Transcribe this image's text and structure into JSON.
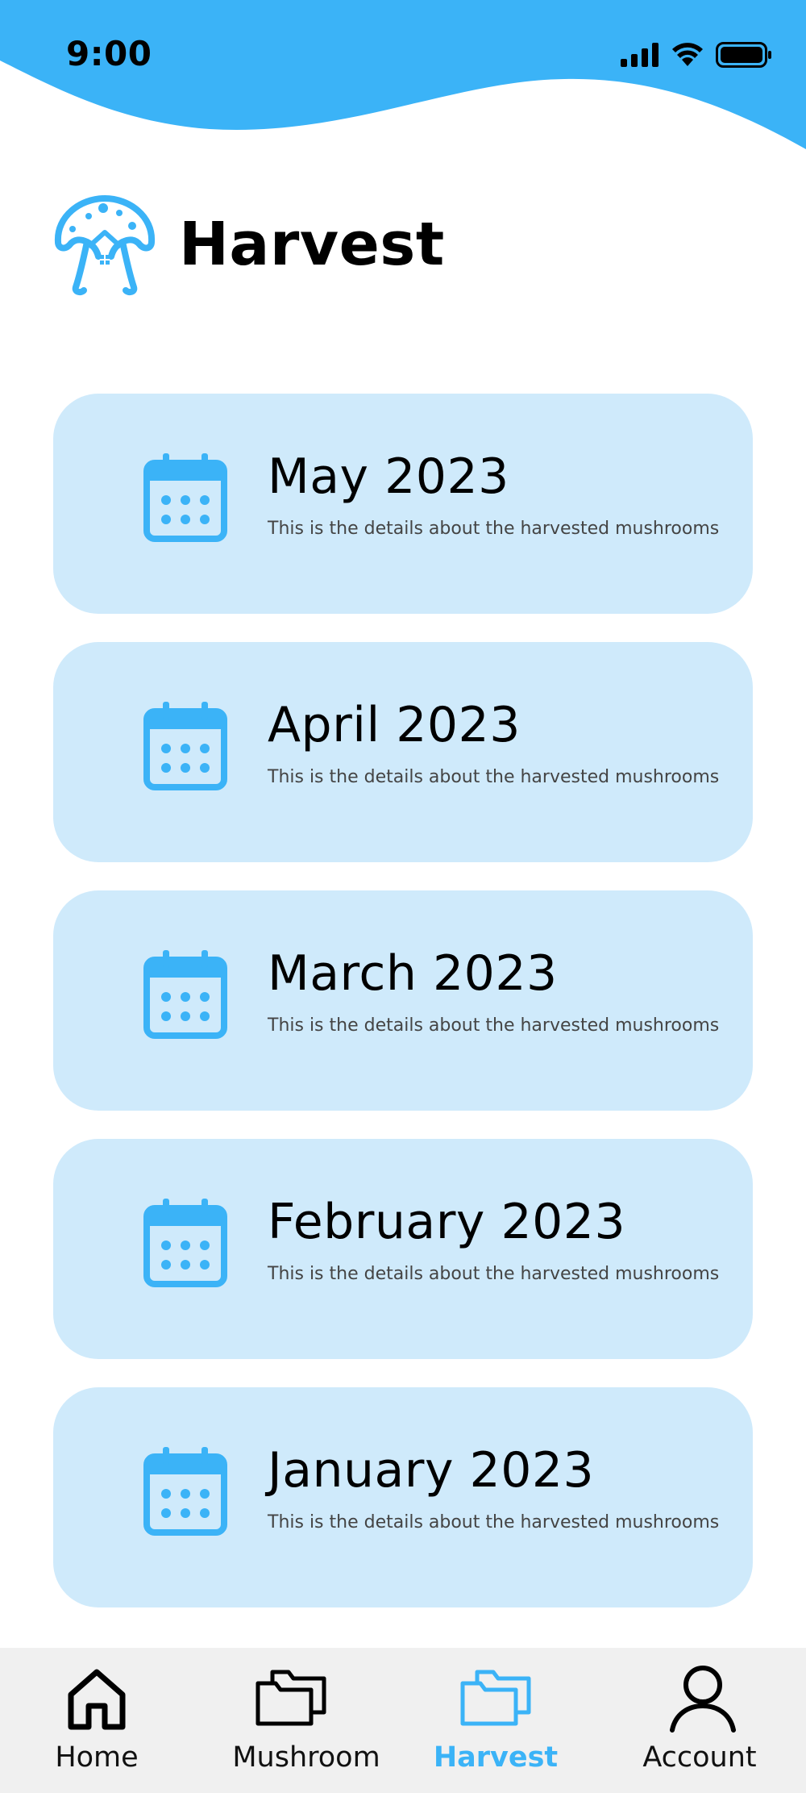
{
  "status_bar": {
    "time": "9:00"
  },
  "header": {
    "title": "Harvest",
    "logo": "mushroom-logo-icon"
  },
  "harvest_cards": [
    {
      "month": "May 2023",
      "description": "This is the details about the harvested mushrooms",
      "icon": "calendar-icon"
    },
    {
      "month": "April 2023",
      "description": "This is the details about the harvested mushrooms",
      "icon": "calendar-icon"
    },
    {
      "month": "March 2023",
      "description": "This is the details about the harvested mushrooms",
      "icon": "calendar-icon"
    },
    {
      "month": "February 2023",
      "description": "This is the details about the harvested mushrooms",
      "icon": "calendar-icon"
    },
    {
      "month": "January 2023",
      "description": "This is the details about the harvested mushrooms",
      "icon": "calendar-icon"
    }
  ],
  "nav": {
    "items": [
      {
        "label": "Home",
        "icon": "home-icon",
        "active": false
      },
      {
        "label": "Mushroom",
        "icon": "folder-icon",
        "active": false
      },
      {
        "label": "Harvest",
        "icon": "folder-icon",
        "active": true
      },
      {
        "label": "Account",
        "icon": "user-icon",
        "active": false
      }
    ]
  },
  "colors": {
    "accent": "#3bb3f7",
    "card_bg": "#cfeafb",
    "nav_bg": "#f0f0f0"
  }
}
